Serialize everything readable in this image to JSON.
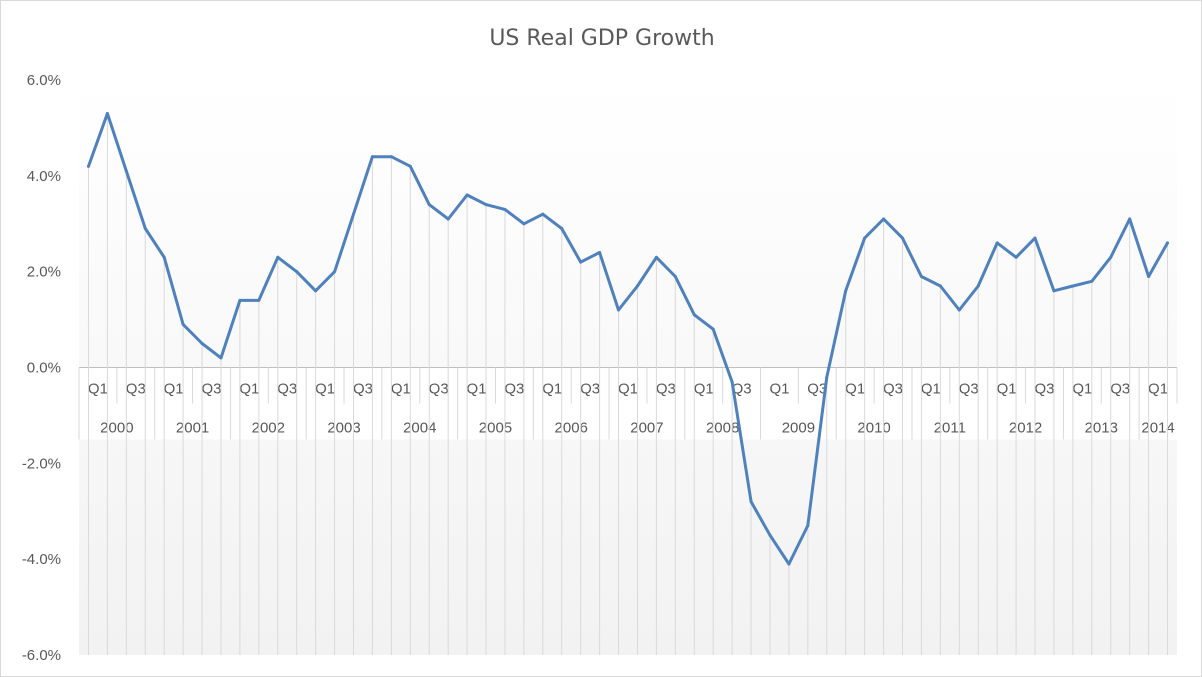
{
  "chart_data": {
    "type": "line",
    "title": "US Real GDP Growth",
    "xlabel": "",
    "ylabel": "",
    "ylim": [
      -0.06,
      0.06
    ],
    "y_ticks": [
      {
        "value": 0.06,
        "label": "6.0%"
      },
      {
        "value": 0.04,
        "label": "4.0%"
      },
      {
        "value": 0.02,
        "label": "2.0%"
      },
      {
        "value": 0.0,
        "label": "0.0%"
      },
      {
        "value": -0.02,
        "label": "-2.0%"
      },
      {
        "value": -0.04,
        "label": "-4.0%"
      },
      {
        "value": -0.06,
        "label": "-6.0%"
      }
    ],
    "years": [
      "2000",
      "2001",
      "2002",
      "2003",
      "2004",
      "2005",
      "2006",
      "2007",
      "2008",
      "2009",
      "2010",
      "2011",
      "2012",
      "2013",
      "2014"
    ],
    "quarter_labels": [
      "Q1",
      "Q3"
    ],
    "categories": [
      "2000 Q1",
      "2000 Q2",
      "2000 Q3",
      "2000 Q4",
      "2001 Q1",
      "2001 Q2",
      "2001 Q3",
      "2001 Q4",
      "2002 Q1",
      "2002 Q2",
      "2002 Q3",
      "2002 Q4",
      "2003 Q1",
      "2003 Q2",
      "2003 Q3",
      "2003 Q4",
      "2004 Q1",
      "2004 Q2",
      "2004 Q3",
      "2004 Q4",
      "2005 Q1",
      "2005 Q2",
      "2005 Q3",
      "2005 Q4",
      "2006 Q1",
      "2006 Q2",
      "2006 Q3",
      "2006 Q4",
      "2007 Q1",
      "2007 Q2",
      "2007 Q3",
      "2007 Q4",
      "2008 Q1",
      "2008 Q2",
      "2008 Q3",
      "2008 Q4",
      "2009 Q1",
      "2009 Q2",
      "2009 Q3",
      "2009 Q4",
      "2010 Q1",
      "2010 Q2",
      "2010 Q3",
      "2010 Q4",
      "2011 Q1",
      "2011 Q2",
      "2011 Q3",
      "2011 Q4",
      "2012 Q1",
      "2012 Q2",
      "2012 Q3",
      "2012 Q4",
      "2013 Q1",
      "2013 Q2",
      "2013 Q3",
      "2013 Q4",
      "2014 Q1",
      "2014 Q2"
    ],
    "series": [
      {
        "color": "#4f81bd",
        "values": [
          0.042,
          0.053,
          0.041,
          0.029,
          0.023,
          0.009,
          0.005,
          0.002,
          0.014,
          0.014,
          0.023,
          0.02,
          0.016,
          0.02,
          0.032,
          0.044,
          0.044,
          0.042,
          0.034,
          0.031,
          0.036,
          0.034,
          0.033,
          0.03,
          0.032,
          0.029,
          0.022,
          0.024,
          0.012,
          0.017,
          0.023,
          0.019,
          0.011,
          0.008,
          -0.003,
          -0.028,
          -0.035,
          -0.041,
          -0.033,
          -0.002,
          0.016,
          0.027,
          0.031,
          0.027,
          0.019,
          0.017,
          0.012,
          0.017,
          0.026,
          0.023,
          0.027,
          0.016,
          0.017,
          0.018,
          0.023,
          0.031,
          0.019,
          0.026
        ]
      }
    ],
    "grid": false,
    "drop_lines": true,
    "legend": "none"
  }
}
